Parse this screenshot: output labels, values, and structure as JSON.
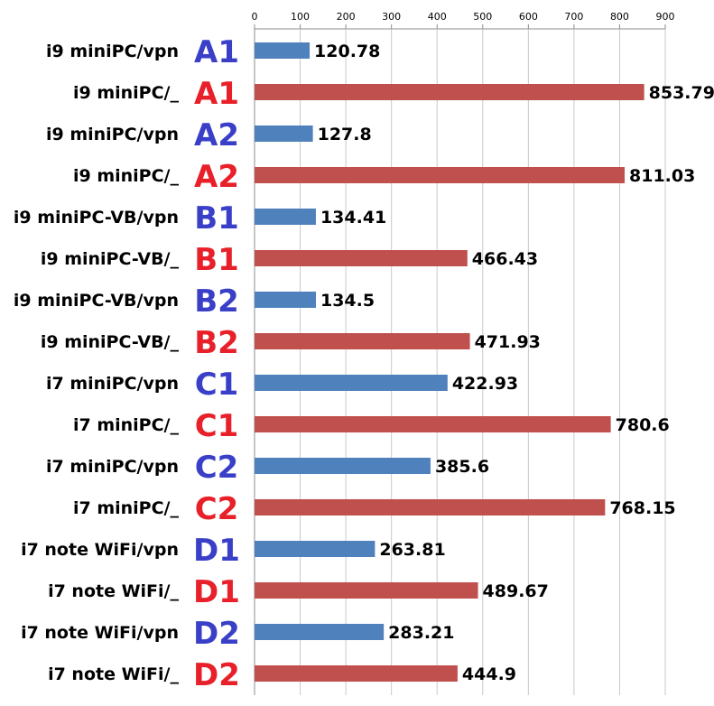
{
  "chart_data": {
    "type": "bar",
    "orientation": "horizontal",
    "categories": [
      "i9 miniPC/vpn",
      "i9 miniPC/_",
      "i9 miniPC/vpn",
      "i9 miniPC/_",
      "i9 miniPC-VB/vpn",
      "i9 miniPC-VB/_",
      "i9 miniPC-VB/vpn",
      "i9 miniPC-VB/_",
      "i7 miniPC/vpn",
      "i7 miniPC/_",
      "i7 miniPC/vpn",
      "i7 miniPC/_",
      "i7 note WiFi/vpn",
      "i7 note WiFi/_",
      "i7 note WiFi/vpn",
      "i7 note WiFi/_"
    ],
    "tags": [
      "A1",
      "A1",
      "A2",
      "A2",
      "B1",
      "B1",
      "B2",
      "B2",
      "C1",
      "C1",
      "C2",
      "C2",
      "D1",
      "D1",
      "D2",
      "D2"
    ],
    "values": [
      120.78,
      853.79,
      127.8,
      811.03,
      134.41,
      466.43,
      134.5,
      471.93,
      422.93,
      780.6,
      385.6,
      768.15,
      263.81,
      489.67,
      283.21,
      444.9
    ],
    "value_labels": [
      "120.78",
      "853.79",
      "127.8",
      "811.03",
      "134.41",
      "466.43",
      "134.5",
      "471.93",
      "422.93",
      "780.6",
      "385.6",
      "768.15",
      "263.81",
      "489.67",
      "283.21",
      "444.9"
    ],
    "xticks": [
      "0",
      "100",
      "200",
      "300",
      "400",
      "500",
      "600",
      "700",
      "800",
      "900"
    ],
    "xlim": [
      0,
      900
    ],
    "grid": true,
    "colors": {
      "vpn": "#4f81bd",
      "plain": "#c0504d",
      "tag_vpn": "#3a3fc8",
      "tag_plain": "#e8202a"
    }
  }
}
